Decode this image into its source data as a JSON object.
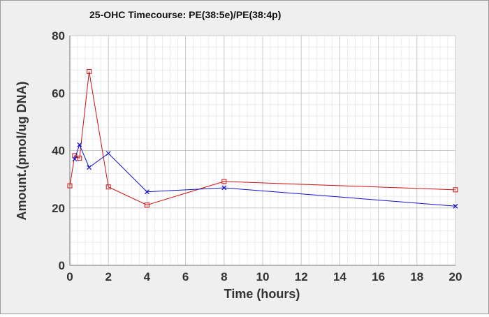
{
  "chart_data": {
    "type": "line",
    "title": "25-OHC Timecourse: PE(38:5e)/PE(38:4p)",
    "xlabel": "Time (hours)",
    "ylabel": "Amount.(pmol/ug DNA)",
    "xlim": [
      0,
      20
    ],
    "ylim": [
      0,
      80
    ],
    "xticks": [
      0,
      2,
      4,
      6,
      8,
      10,
      12,
      14,
      16,
      18,
      20
    ],
    "yticks": [
      0,
      20,
      40,
      60,
      80
    ],
    "grid": true,
    "series": [
      {
        "color": "#cc1111",
        "marker": "square",
        "points": [
          {
            "x": 0,
            "y": 27.7
          },
          {
            "x": 0.25,
            "y": 38.2
          },
          {
            "x": 0.5,
            "y": 37.3
          },
          {
            "x": 1,
            "y": 67.5
          },
          {
            "x": 2,
            "y": 27.3
          },
          {
            "x": 4,
            "y": 21.0
          },
          {
            "x": 8,
            "y": 29.2
          },
          {
            "x": 20,
            "y": 26.3
          }
        ]
      },
      {
        "color": "#1111cc",
        "marker": "x",
        "points": [
          {
            "x": 0.25,
            "y": 37.0
          },
          {
            "x": 0.5,
            "y": 42.0
          },
          {
            "x": 1,
            "y": 34.1
          },
          {
            "x": 2,
            "y": 39.0
          },
          {
            "x": 4,
            "y": 25.6
          },
          {
            "x": 8,
            "y": 27.0
          },
          {
            "x": 20,
            "y": 20.6
          }
        ]
      }
    ]
  }
}
